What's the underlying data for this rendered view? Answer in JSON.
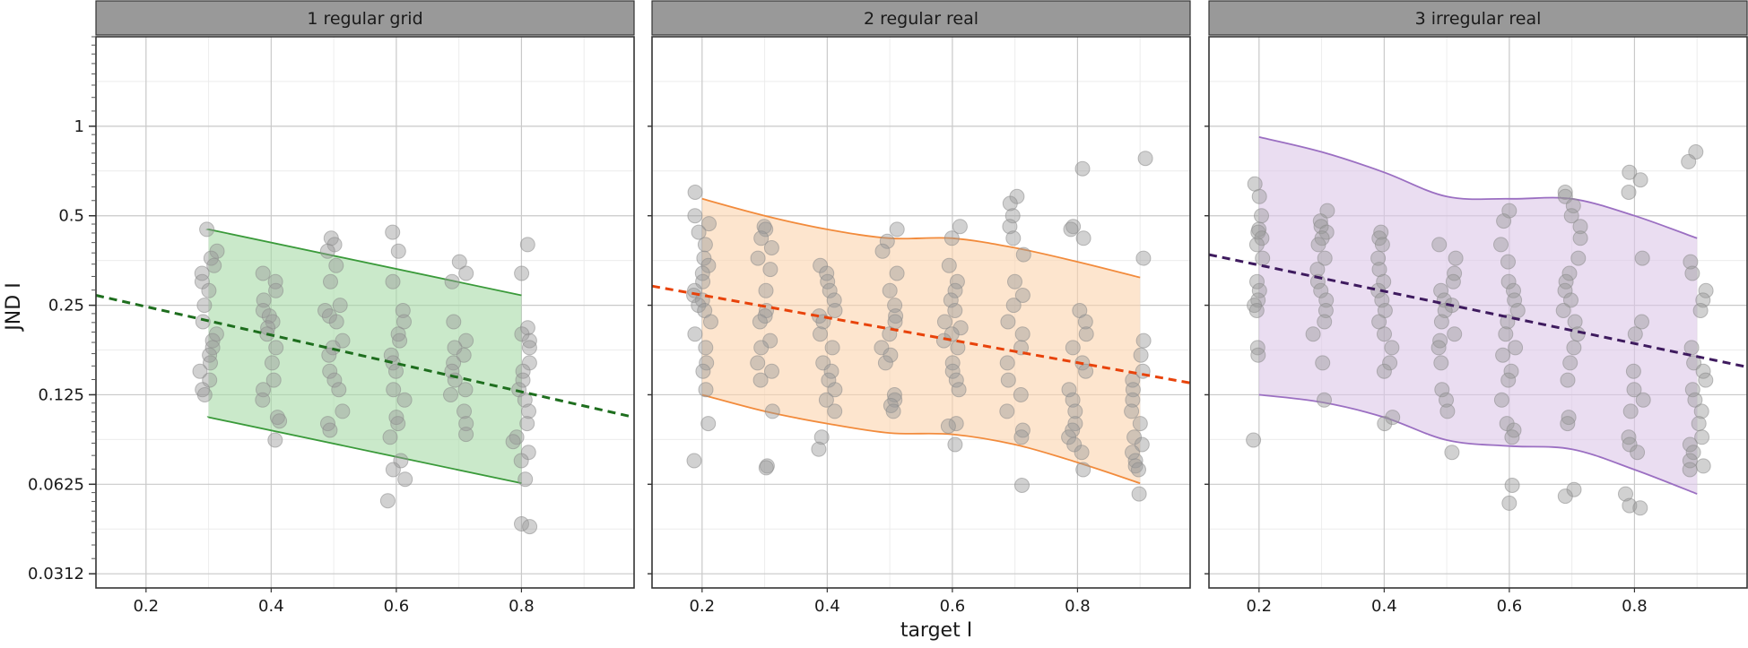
{
  "chart_data": {
    "type": "scatter",
    "xlabel": "target I",
    "ylabel": "JND I",
    "y_scale": "log2",
    "xlim": [
      0.12,
      0.98
    ],
    "ylim": [
      0.028,
      2.0
    ],
    "x_ticks": [
      0.2,
      0.4,
      0.6,
      0.8
    ],
    "x_tick_labels": [
      "0.2",
      "0.4",
      "0.6",
      "0.8"
    ],
    "y_ticks": [
      0.03125,
      0.0625,
      0.125,
      0.25,
      0.5,
      1
    ],
    "y_tick_labels": [
      "0.0312",
      "0.0625",
      "0.125",
      "0.25",
      "0.5",
      "1"
    ],
    "grid": true,
    "panels": [
      {
        "title": "1 regular grid",
        "color": "#3a9a3a",
        "line_color": "#1e6e1e",
        "band_fill": "#a7dba7",
        "points": [
          {
            "x": 0.3,
            "y": [
              0.45,
              0.38,
              0.36,
              0.34,
              0.32,
              0.3,
              0.28,
              0.25,
              0.22,
              0.2,
              0.19,
              0.18,
              0.17,
              0.16,
              0.15,
              0.14,
              0.13,
              0.125
            ]
          },
          {
            "x": 0.4,
            "y": [
              0.32,
              0.3,
              0.28,
              0.26,
              0.24,
              0.23,
              0.22,
              0.21,
              0.2,
              0.18,
              0.16,
              0.14,
              0.13,
              0.12,
              0.105,
              0.102,
              0.088
            ]
          },
          {
            "x": 0.5,
            "y": [
              0.42,
              0.4,
              0.38,
              0.34,
              0.3,
              0.25,
              0.24,
              0.23,
              0.22,
              0.19,
              0.18,
              0.17,
              0.15,
              0.14,
              0.13,
              0.11,
              0.1,
              0.095
            ]
          },
          {
            "x": 0.6,
            "y": [
              0.44,
              0.38,
              0.3,
              0.24,
              0.22,
              0.2,
              0.19,
              0.17,
              0.16,
              0.15,
              0.13,
              0.12,
              0.105,
              0.1,
              0.09,
              0.075,
              0.07,
              0.065,
              0.055
            ]
          },
          {
            "x": 0.7,
            "y": [
              0.35,
              0.32,
              0.3,
              0.22,
              0.19,
              0.18,
              0.17,
              0.16,
              0.15,
              0.14,
              0.13,
              0.125,
              0.11,
              0.1,
              0.092
            ]
          },
          {
            "x": 0.8,
            "y": [
              0.4,
              0.32,
              0.21,
              0.2,
              0.19,
              0.18,
              0.16,
              0.15,
              0.14,
              0.13,
              0.12,
              0.11,
              0.1,
              0.09,
              0.087,
              0.08,
              0.075,
              0.065,
              0.046,
              0.045
            ]
          }
        ],
        "fit_line": {
          "x": [
            0.12,
            0.98
          ],
          "y": [
            0.27,
            0.105
          ]
        },
        "band": {
          "x": [
            0.3,
            0.8
          ],
          "upper": [
            0.45,
            0.27
          ],
          "lower": [
            0.105,
            0.063
          ]
        }
      },
      {
        "title": "2 regular real",
        "color": "#f28b3c",
        "line_color": "#e8430b",
        "band_fill": "#fcd4ae",
        "points": [
          {
            "x": 0.2,
            "y": [
              0.6,
              0.5,
              0.47,
              0.44,
              0.4,
              0.36,
              0.34,
              0.32,
              0.3,
              0.28,
              0.27,
              0.26,
              0.25,
              0.24,
              0.22,
              0.2,
              0.18,
              0.16,
              0.15,
              0.13,
              0.1,
              0.075
            ]
          },
          {
            "x": 0.3,
            "y": [
              0.46,
              0.45,
              0.42,
              0.39,
              0.36,
              0.33,
              0.28,
              0.24,
              0.23,
              0.22,
              0.19,
              0.18,
              0.16,
              0.15,
              0.14,
              0.11,
              0.072,
              0.071
            ]
          },
          {
            "x": 0.4,
            "y": [
              0.34,
              0.32,
              0.3,
              0.28,
              0.26,
              0.24,
              0.23,
              0.22,
              0.2,
              0.18,
              0.16,
              0.15,
              0.14,
              0.13,
              0.12,
              0.11,
              0.09,
              0.082
            ]
          },
          {
            "x": 0.5,
            "y": [
              0.45,
              0.41,
              0.38,
              0.32,
              0.28,
              0.25,
              0.23,
              0.22,
              0.2,
              0.18,
              0.17,
              0.16,
              0.125,
              0.12,
              0.115,
              0.11
            ]
          },
          {
            "x": 0.6,
            "y": [
              0.46,
              0.42,
              0.34,
              0.3,
              0.28,
              0.26,
              0.24,
              0.22,
              0.21,
              0.2,
              0.19,
              0.18,
              0.16,
              0.15,
              0.14,
              0.13,
              0.1,
              0.098,
              0.085
            ]
          },
          {
            "x": 0.7,
            "y": [
              0.58,
              0.55,
              0.5,
              0.46,
              0.42,
              0.37,
              0.3,
              0.27,
              0.25,
              0.22,
              0.2,
              0.18,
              0.16,
              0.14,
              0.125,
              0.11,
              0.095,
              0.09,
              0.062
            ]
          },
          {
            "x": 0.8,
            "y": [
              0.72,
              0.46,
              0.45,
              0.42,
              0.24,
              0.22,
              0.2,
              0.18,
              0.16,
              0.15,
              0.13,
              0.12,
              0.11,
              0.1,
              0.095,
              0.09,
              0.085,
              0.08,
              0.07
            ]
          },
          {
            "x": 0.9,
            "y": [
              0.78,
              0.36,
              0.19,
              0.17,
              0.15,
              0.14,
              0.13,
              0.12,
              0.11,
              0.1,
              0.09,
              0.085,
              0.08,
              0.075,
              0.072,
              0.07,
              0.058
            ]
          }
        ],
        "fit_line": {
          "x": [
            0.12,
            0.98
          ],
          "y": [
            0.29,
            0.137
          ]
        },
        "band": {
          "x": [
            0.2,
            0.3,
            0.4,
            0.5,
            0.6,
            0.7,
            0.8,
            0.9
          ],
          "upper": [
            0.57,
            0.5,
            0.45,
            0.42,
            0.42,
            0.39,
            0.35,
            0.31
          ],
          "lower": [
            0.125,
            0.11,
            0.1,
            0.093,
            0.092,
            0.085,
            0.074,
            0.063
          ]
        }
      },
      {
        "title": "3 irregular real",
        "color": "#9b6fc2",
        "line_color": "#3e1a5e",
        "band_fill": "#dcc6e8",
        "points": [
          {
            "x": 0.2,
            "y": [
              0.64,
              0.58,
              0.5,
              0.45,
              0.44,
              0.42,
              0.4,
              0.36,
              0.3,
              0.28,
              0.26,
              0.25,
              0.24,
              0.18,
              0.17,
              0.088
            ]
          },
          {
            "x": 0.3,
            "y": [
              0.52,
              0.48,
              0.46,
              0.44,
              0.42,
              0.4,
              0.36,
              0.33,
              0.3,
              0.28,
              0.26,
              0.24,
              0.22,
              0.2,
              0.16,
              0.12
            ]
          },
          {
            "x": 0.4,
            "y": [
              0.44,
              0.42,
              0.4,
              0.36,
              0.33,
              0.3,
              0.28,
              0.26,
              0.24,
              0.22,
              0.2,
              0.18,
              0.16,
              0.15,
              0.105,
              0.1
            ]
          },
          {
            "x": 0.5,
            "y": [
              0.4,
              0.36,
              0.32,
              0.3,
              0.28,
              0.26,
              0.25,
              0.24,
              0.22,
              0.2,
              0.19,
              0.18,
              0.16,
              0.13,
              0.12,
              0.11,
              0.08
            ]
          },
          {
            "x": 0.6,
            "y": [
              0.52,
              0.48,
              0.4,
              0.35,
              0.3,
              0.28,
              0.26,
              0.24,
              0.22,
              0.2,
              0.18,
              0.17,
              0.15,
              0.14,
              0.12,
              0.1,
              0.095,
              0.09,
              0.062,
              0.054
            ]
          },
          {
            "x": 0.7,
            "y": [
              0.6,
              0.58,
              0.54,
              0.5,
              0.46,
              0.42,
              0.36,
              0.32,
              0.3,
              0.28,
              0.26,
              0.24,
              0.22,
              0.2,
              0.18,
              0.16,
              0.14,
              0.105,
              0.1,
              0.06,
              0.057
            ]
          },
          {
            "x": 0.8,
            "y": [
              0.7,
              0.66,
              0.6,
              0.36,
              0.22,
              0.2,
              0.15,
              0.13,
              0.12,
              0.11,
              0.09,
              0.085,
              0.08,
              0.058,
              0.053,
              0.052
            ]
          },
          {
            "x": 0.9,
            "y": [
              0.82,
              0.76,
              0.35,
              0.32,
              0.28,
              0.26,
              0.24,
              0.18,
              0.16,
              0.15,
              0.14,
              0.13,
              0.12,
              0.11,
              0.1,
              0.09,
              0.085,
              0.08,
              0.075,
              0.072,
              0.07
            ]
          }
        ],
        "fit_line": {
          "x": [
            0.12,
            0.98
          ],
          "y": [
            0.37,
            0.155
          ]
        },
        "band": {
          "x": [
            0.2,
            0.3,
            0.4,
            0.5,
            0.6,
            0.7,
            0.8,
            0.9
          ],
          "upper": [
            0.92,
            0.82,
            0.7,
            0.58,
            0.57,
            0.57,
            0.5,
            0.42
          ],
          "lower": [
            0.125,
            0.118,
            0.105,
            0.088,
            0.084,
            0.082,
            0.07,
            0.058
          ]
        }
      }
    ]
  }
}
